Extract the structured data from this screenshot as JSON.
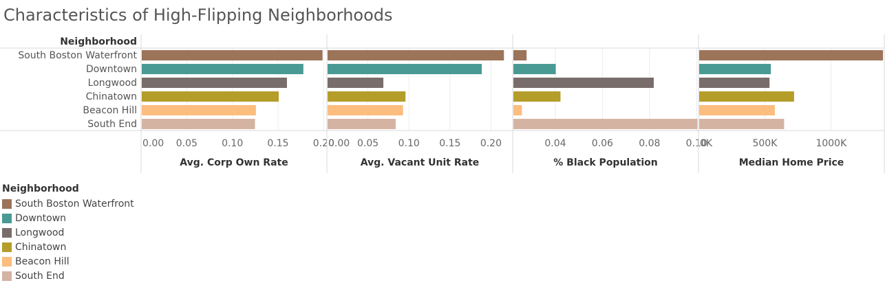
{
  "title": "Characteristics of High-Flipping Neighborhoods",
  "row_header": "Neighborhood",
  "legend": {
    "title": "Neighborhood",
    "items": [
      {
        "label": "South Boston Waterfront",
        "color": "#9c7459"
      },
      {
        "label": "Downtown",
        "color": "#4a9a94"
      },
      {
        "label": "Longwood",
        "color": "#786d6a"
      },
      {
        "label": "Chinatown",
        "color": "#b59d2a"
      },
      {
        "label": "Beacon Hill",
        "color": "#fcbd7e"
      },
      {
        "label": "South End",
        "color": "#d5b3a3"
      }
    ]
  },
  "chart_data": {
    "type": "bar",
    "orientation": "horizontal",
    "categories": [
      "South Boston Waterfront",
      "Downtown",
      "Longwood",
      "Chinatown",
      "Beacon Hill",
      "South End"
    ],
    "colors": [
      "#9c7459",
      "#4a9a94",
      "#786d6a",
      "#b59d2a",
      "#fcbd7e",
      "#d5b3a3"
    ],
    "grid": true,
    "legend_position": "bottom-left",
    "panels": [
      {
        "xlabel": "Avg. Corp Own Rate",
        "xmin": 0,
        "xmax": 0.2035,
        "ticks": [
          {
            "v": 0,
            "label": "0.00"
          },
          {
            "v": 0.05,
            "label": "0.05"
          },
          {
            "v": 0.1,
            "label": "0.10"
          },
          {
            "v": 0.15,
            "label": "0.15"
          },
          {
            "v": 0.2,
            "label": "0.20"
          }
        ],
        "values": [
          0.198,
          0.177,
          0.159,
          0.15,
          0.125,
          0.124
        ]
      },
      {
        "xlabel": "Avg. Vacant Unit Rate",
        "xmin": 0,
        "xmax": 0.2265,
        "ticks": [
          {
            "v": 0,
            "label": "0.00"
          },
          {
            "v": 0.05,
            "label": "0.05"
          },
          {
            "v": 0.1,
            "label": "0.10"
          },
          {
            "v": 0.15,
            "label": "0.15"
          },
          {
            "v": 0.2,
            "label": "0.20"
          }
        ],
        "values": [
          0.215,
          0.188,
          0.068,
          0.095,
          0.092,
          0.083
        ]
      },
      {
        "xlabel": "% Black Population",
        "xmin": 0.0219,
        "xmax": 0.1008,
        "ticks": [
          {
            "v": 0.04,
            "label": "0.04"
          },
          {
            "v": 0.06,
            "label": "0.06"
          },
          {
            "v": 0.08,
            "label": "0.08"
          },
          {
            "v": 0.1,
            "label": "0.10"
          }
        ],
        "values": [
          0.0275,
          0.0399,
          0.0815,
          0.0419,
          0.0255,
          0.1001
        ]
      },
      {
        "xlabel": "Median Home Price",
        "xmin": 0,
        "xmax": 1400000,
        "ticks": [
          {
            "v": 0,
            "label": "0K"
          },
          {
            "v": 500000,
            "label": "500K"
          },
          {
            "v": 1000000,
            "label": "1000K"
          }
        ],
        "values": [
          1385000,
          540000,
          530000,
          715000,
          570000,
          640000
        ]
      }
    ]
  }
}
